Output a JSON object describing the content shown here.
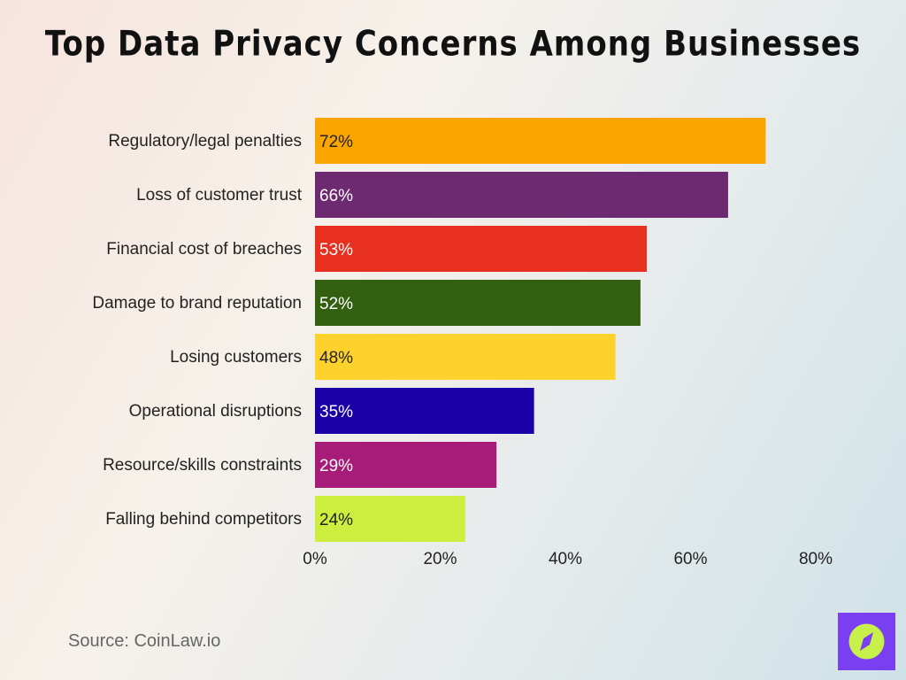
{
  "chart_data": {
    "type": "bar",
    "orientation": "horizontal",
    "title": "Top Data Privacy Concerns Among Businesses",
    "categories": [
      "Regulatory/legal penalties",
      "Loss of customer trust",
      "Financial cost of breaches",
      "Damage to brand reputation",
      "Losing customers",
      "Operational disruptions",
      "Resource/skills constraints",
      "Falling behind competitors"
    ],
    "values": [
      72,
      66,
      53,
      52,
      48,
      35,
      29,
      24
    ],
    "data_labels": [
      "72%",
      "66%",
      "53%",
      "52%",
      "48%",
      "35%",
      "29%",
      "24%"
    ],
    "colors": [
      "#fba600",
      "#6e2a70",
      "#e8301f",
      "#336010",
      "#fdd22c",
      "#1b00a8",
      "#a71c78",
      "#cdee3e"
    ],
    "label_colors": [
      "#222222",
      "#ffffff",
      "#ffffff",
      "#ffffff",
      "#222222",
      "#ffffff",
      "#ffffff",
      "#222222"
    ],
    "xlim": [
      0,
      80
    ],
    "xticks": [
      0,
      20,
      40,
      60,
      80
    ],
    "xtick_labels": [
      "0%",
      "20%",
      "40%",
      "60%",
      "80%"
    ],
    "grid": false,
    "xlabel": "",
    "ylabel": ""
  },
  "source": "Source: CoinLaw.io",
  "logo": {
    "icon": "compass-icon",
    "bg": "#7b3ff2",
    "fg": "#c8f04a"
  }
}
